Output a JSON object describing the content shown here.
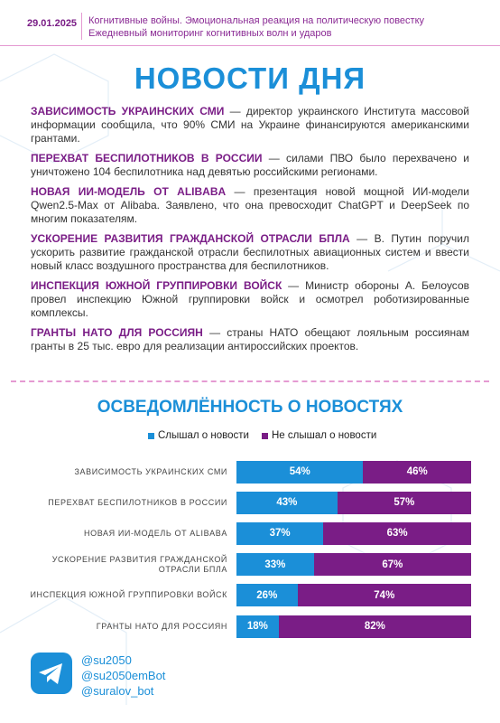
{
  "header": {
    "date": "29.01.2025",
    "line1": "Когнитивные войны. Эмоциональная реакция на политическую повестку",
    "line2": "Ежедневный мониторинг когнитивных волн и ударов"
  },
  "title": "НОВОСТИ ДНЯ",
  "news": [
    {
      "headline": "ЗАВИСИМОСТЬ УКРАИНСКИХ СМИ",
      "text": "— директор украинского Института массовой информации сообщила, что 90% СМИ на Украине финансируются американскими грантами."
    },
    {
      "headline": "ПЕРЕХВАТ БЕСПИЛОТНИКОВ В РОССИИ",
      "text": "— силами ПВО было перехвачено и уничтожено 104 беспилотника над девятью российскими регионами."
    },
    {
      "headline": "НОВАЯ ИИ-МОДЕЛЬ ОТ ALIBABA",
      "text": "— презентация новой мощной ИИ-модели Qwen2.5-Max от Alibaba. Заявлено, что она превосходит ChatGPT и DeepSeek по многим показателям."
    },
    {
      "headline": "УСКОРЕНИЕ РАЗВИТИЯ ГРАЖДАНСКОЙ ОТРАСЛИ БПЛА",
      "text": "— В. Путин поручил ускорить развитие гражданской отрасли беспилотных авиационных систем и ввести новый класс воздушного пространства для беспилотников."
    },
    {
      "headline": "ИНСПЕКЦИЯ ЮЖНОЙ ГРУППИРОВКИ ВОЙСК",
      "text": "— Министр обороны А. Белоусов провел инспекцию Южной группировки войск и осмотрел роботизированные комплексы."
    },
    {
      "headline": "ГРАНТЫ НАТО ДЛЯ РОССИЯН",
      "text": "— страны НАТО обещают лояльным россиянам гранты в 25 тыс. евро для реализации антироссийских проектов."
    }
  ],
  "chart_data": {
    "type": "stacked-bar",
    "title": "ОСВЕДОМЛЁННОСТЬ О НОВОСТЯХ",
    "categories": [
      "ЗАВИСИМОСТЬ УКРАИНСКИХ СМИ",
      "ПЕРЕХВАТ БЕСПИЛОТНИКОВ В РОССИИ",
      "НОВАЯ ИИ-МОДЕЛЬ ОТ ALIBABA",
      "УСКОРЕНИЕ РАЗВИТИЯ ГРАЖДАНСКОЙ ОТРАСЛИ БПЛА",
      "ИНСПЕКЦИЯ ЮЖНОЙ ГРУППИРОВКИ ВОЙСК",
      "ГРАНТЫ НАТО ДЛЯ РОССИЯН"
    ],
    "series": [
      {
        "name": "Слышал о новости",
        "color": "#1b8fd8",
        "values": [
          54,
          43,
          37,
          33,
          26,
          18
        ],
        "value_labels": [
          "54%",
          "43%",
          "37%",
          "33%",
          "26%",
          "18%"
        ]
      },
      {
        "name": "Не слышал о новости",
        "color": "#7a1d86",
        "values": [
          46,
          57,
          63,
          67,
          74,
          82
        ],
        "value_labels": [
          "46%",
          "57%",
          "63%",
          "67%",
          "74%",
          "82%"
        ]
      }
    ]
  },
  "footer": {
    "contacts": [
      "@su2050",
      "@su2050emBot",
      "@suralov_bot"
    ]
  }
}
